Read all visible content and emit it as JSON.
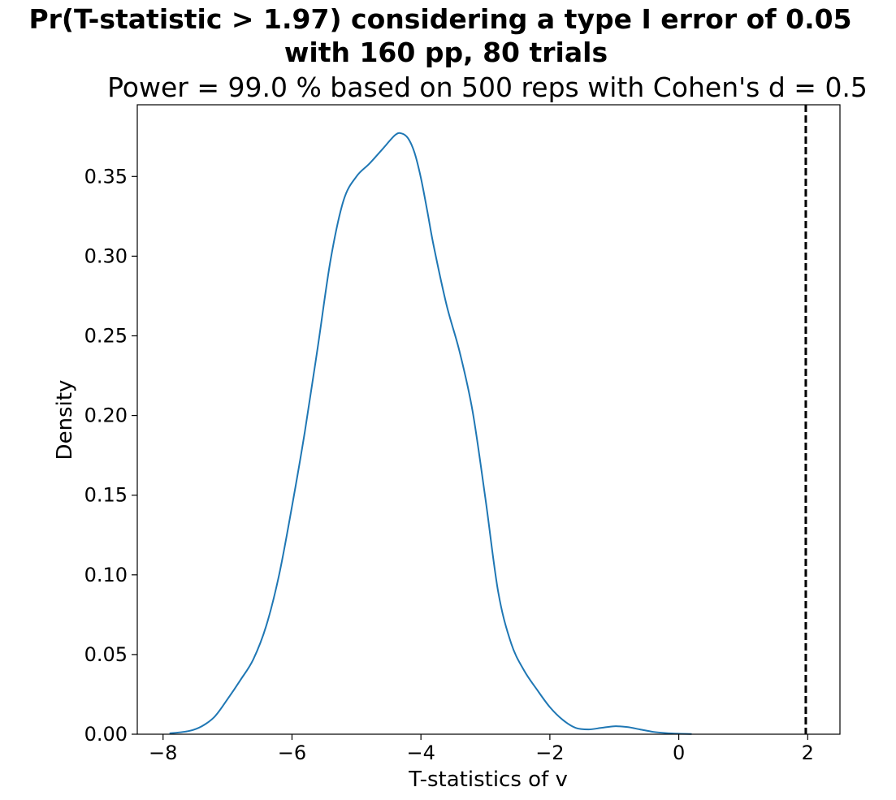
{
  "chart_data": {
    "type": "line",
    "suptitle_lines": [
      "Pr(T-statistic > 1.97) considering a type I error of 0.05",
      "with 160 pp, 80 trials"
    ],
    "title": "Power = 99.0 % based on 500 reps with Cohen's d = 0.5",
    "xlabel": "T-statistics of v",
    "ylabel": "Density",
    "xlim": [
      -8.4,
      2.5
    ],
    "ylim": [
      0.0,
      0.395
    ],
    "xticks": [
      -8,
      -6,
      -4,
      -2,
      0,
      2
    ],
    "xtick_labels": [
      "−8",
      "−6",
      "−4",
      "−2",
      "0",
      "2"
    ],
    "yticks": [
      0.0,
      0.05,
      0.1,
      0.15,
      0.2,
      0.25,
      0.3,
      0.35
    ],
    "ytick_labels": [
      "0.00",
      "0.05",
      "0.10",
      "0.15",
      "0.20",
      "0.25",
      "0.30",
      "0.35"
    ],
    "grid": false,
    "series": [
      {
        "color": "#1f77b4",
        "x": [
          -7.9,
          -7.6,
          -7.4,
          -7.2,
          -7.0,
          -6.8,
          -6.6,
          -6.4,
          -6.2,
          -6.0,
          -5.8,
          -5.6,
          -5.4,
          -5.2,
          -5.0,
          -4.8,
          -4.6,
          -4.4,
          -4.3,
          -4.2,
          -4.1,
          -4.0,
          -3.9,
          -3.8,
          -3.6,
          -3.4,
          -3.2,
          -3.0,
          -2.8,
          -2.6,
          -2.4,
          -2.2,
          -2.0,
          -1.8,
          -1.6,
          -1.4,
          -1.2,
          -1.0,
          -0.8,
          -0.6,
          -0.4,
          -0.2,
          0.0,
          0.2
        ],
        "y": [
          0.0005,
          0.002,
          0.005,
          0.011,
          0.022,
          0.034,
          0.047,
          0.068,
          0.1,
          0.143,
          0.19,
          0.243,
          0.298,
          0.335,
          0.35,
          0.358,
          0.367,
          0.376,
          0.377,
          0.374,
          0.365,
          0.349,
          0.328,
          0.306,
          0.269,
          0.24,
          0.203,
          0.148,
          0.089,
          0.057,
          0.04,
          0.028,
          0.017,
          0.009,
          0.004,
          0.003,
          0.004,
          0.005,
          0.0045,
          0.003,
          0.0015,
          0.0007,
          0.0003,
          0.0001
        ]
      }
    ],
    "vline": {
      "x": 1.97,
      "color": "#000000",
      "style": "dashed"
    }
  }
}
